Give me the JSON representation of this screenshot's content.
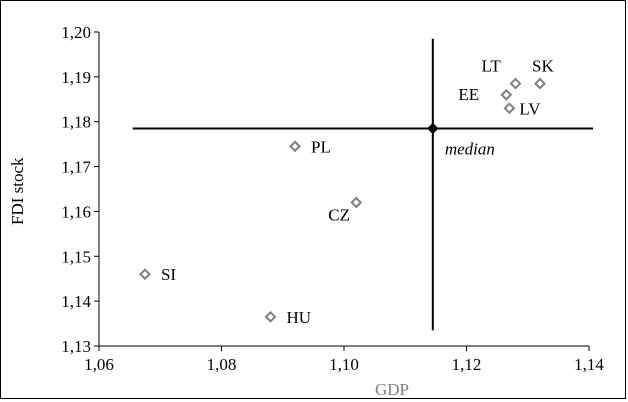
{
  "chart_data": {
    "type": "scatter",
    "title": "",
    "xlabel": "GDP",
    "ylabel": "FDI stock",
    "xlim": [
      1.06,
      1.14
    ],
    "ylim": [
      1.13,
      1.2
    ],
    "x_ticks": [
      "1,06",
      "1,08",
      "1,10",
      "1,12",
      "1,14"
    ],
    "y_ticks": [
      "1,13",
      "1,14",
      "1,15",
      "1,16",
      "1,17",
      "1,18",
      "1,19",
      "1,20"
    ],
    "grid": false,
    "points": [
      {
        "label": "SK",
        "x": 1.132,
        "y": 1.1885
      },
      {
        "label": "LT",
        "x": 1.128,
        "y": 1.1885
      },
      {
        "label": "EE",
        "x": 1.1265,
        "y": 1.186
      },
      {
        "label": "LV",
        "x": 1.127,
        "y": 1.183
      },
      {
        "label": "PL",
        "x": 1.092,
        "y": 1.1745
      },
      {
        "label": "CZ",
        "x": 1.102,
        "y": 1.162
      },
      {
        "label": "SI",
        "x": 1.0675,
        "y": 1.146
      },
      {
        "label": "HU",
        "x": 1.088,
        "y": 1.1365
      }
    ],
    "median": {
      "label": "median",
      "x": 1.1145,
      "y": 1.1785
    },
    "colors": {
      "axis_title": "#7f7f7f",
      "marker": "#7f7f7f",
      "line": "#000000"
    }
  }
}
